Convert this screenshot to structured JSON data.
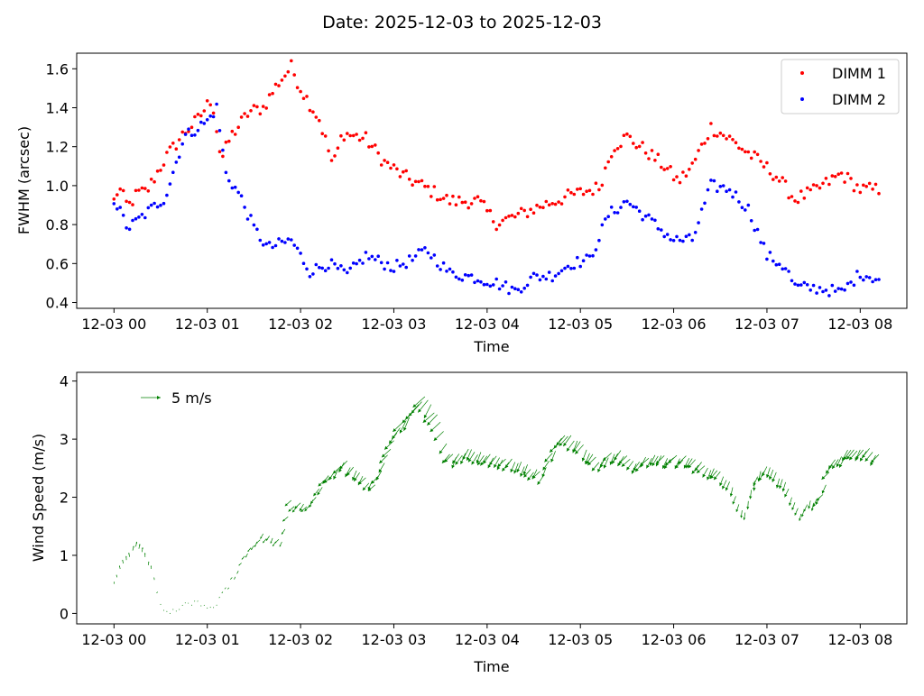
{
  "figure_title": "Date: 2025-12-03 to 2025-12-03",
  "chart_data": [
    {
      "type": "scatter",
      "xlabel": "Time",
      "ylabel": "FWHM (arcsec)",
      "x_unit": "hours after 2025-12-03 00:00",
      "xlim": [
        -0.4,
        8.5
      ],
      "ylim": [
        0.37,
        1.68
      ],
      "x_ticks": [
        0,
        1,
        2,
        3,
        4,
        5,
        6,
        7,
        8
      ],
      "x_tick_labels": [
        "12-03 00",
        "12-03 01",
        "12-03 02",
        "12-03 03",
        "12-03 04",
        "12-03 05",
        "12-03 06",
        "12-03 07",
        "12-03 08"
      ],
      "y_ticks": [
        0.4,
        0.6,
        0.8,
        1.0,
        1.2,
        1.4,
        1.6
      ],
      "y_tick_labels": [
        "0.4",
        "0.6",
        "0.8",
        "1.0",
        "1.2",
        "1.4",
        "1.6"
      ],
      "grid": false,
      "legend_position": "top-right",
      "series": [
        {
          "name": "DIMM 1",
          "color": "#ff0000",
          "anchors": [
            [
              0,
              0.92
            ],
            [
              0.05,
              0.99
            ],
            [
              0.15,
              0.89
            ],
            [
              0.25,
              0.96
            ],
            [
              0.35,
              0.97
            ],
            [
              0.55,
              1.14
            ],
            [
              0.75,
              1.27
            ],
            [
              0.9,
              1.34
            ],
            [
              1.05,
              1.45
            ],
            [
              1.15,
              1.13
            ],
            [
              1.25,
              1.25
            ],
            [
              1.45,
              1.38
            ],
            [
              1.6,
              1.4
            ],
            [
              1.75,
              1.52
            ],
            [
              1.9,
              1.61
            ],
            [
              2.0,
              1.5
            ],
            [
              2.2,
              1.34
            ],
            [
              2.35,
              1.1
            ],
            [
              2.45,
              1.27
            ],
            [
              2.7,
              1.24
            ],
            [
              2.9,
              1.12
            ],
            [
              3.1,
              1.05
            ],
            [
              3.3,
              1.0
            ],
            [
              3.6,
              0.92
            ],
            [
              3.9,
              0.92
            ],
            [
              4.1,
              0.81
            ],
            [
              4.3,
              0.84
            ],
            [
              4.6,
              0.9
            ],
            [
              4.9,
              0.95
            ],
            [
              5.2,
              0.99
            ],
            [
              5.35,
              1.2
            ],
            [
              5.5,
              1.25
            ],
            [
              5.7,
              1.18
            ],
            [
              5.9,
              1.1
            ],
            [
              6.05,
              1.02
            ],
            [
              6.2,
              1.1
            ],
            [
              6.4,
              1.3
            ],
            [
              6.6,
              1.24
            ],
            [
              6.9,
              1.13
            ],
            [
              7.1,
              1.05
            ],
            [
              7.3,
              0.93
            ],
            [
              7.5,
              0.97
            ],
            [
              7.8,
              1.06
            ],
            [
              8.0,
              0.98
            ],
            [
              8.2,
              0.98
            ]
          ],
          "noise": 0.035
        },
        {
          "name": "DIMM 2",
          "color": "#0000ff",
          "anchors": [
            [
              0,
              0.93
            ],
            [
              0.15,
              0.78
            ],
            [
              0.35,
              0.86
            ],
            [
              0.55,
              0.94
            ],
            [
              0.75,
              1.25
            ],
            [
              1.0,
              1.33
            ],
            [
              1.1,
              1.4
            ],
            [
              1.2,
              1.06
            ],
            [
              1.35,
              0.95
            ],
            [
              1.5,
              0.78
            ],
            [
              1.65,
              0.68
            ],
            [
              1.9,
              0.72
            ],
            [
              2.1,
              0.56
            ],
            [
              2.3,
              0.6
            ],
            [
              2.5,
              0.54
            ],
            [
              2.7,
              0.64
            ],
            [
              3.0,
              0.58
            ],
            [
              3.2,
              0.62
            ],
            [
              3.35,
              0.67
            ],
            [
              3.6,
              0.55
            ],
            [
              3.85,
              0.53
            ],
            [
              4.1,
              0.5
            ],
            [
              4.3,
              0.46
            ],
            [
              4.5,
              0.53
            ],
            [
              4.7,
              0.54
            ],
            [
              4.9,
              0.6
            ],
            [
              5.1,
              0.62
            ],
            [
              5.3,
              0.85
            ],
            [
              5.5,
              0.92
            ],
            [
              5.75,
              0.82
            ],
            [
              6.0,
              0.72
            ],
            [
              6.2,
              0.72
            ],
            [
              6.4,
              1.0
            ],
            [
              6.6,
              0.98
            ],
            [
              6.8,
              0.88
            ],
            [
              7.0,
              0.64
            ],
            [
              7.2,
              0.58
            ],
            [
              7.3,
              0.48
            ],
            [
              7.6,
              0.47
            ],
            [
              7.8,
              0.45
            ],
            [
              8.0,
              0.55
            ],
            [
              8.2,
              0.52
            ]
          ],
          "noise": 0.03
        }
      ]
    },
    {
      "type": "quiver",
      "xlabel": "Time",
      "ylabel": "Wind Speed (m/s)",
      "x_unit": "hours after 2025-12-03 00:00",
      "xlim": [
        -0.4,
        8.5
      ],
      "ylim": [
        -0.18,
        4.15
      ],
      "x_ticks": [
        0,
        1,
        2,
        3,
        4,
        5,
        6,
        7,
        8
      ],
      "x_tick_labels": [
        "12-03 00",
        "12-03 01",
        "12-03 02",
        "12-03 03",
        "12-03 04",
        "12-03 05",
        "12-03 06",
        "12-03 07",
        "12-03 08"
      ],
      "y_ticks": [
        0,
        1,
        2,
        3,
        4
      ],
      "y_tick_labels": [
        "0",
        "1",
        "2",
        "3",
        "4"
      ],
      "color": "#008000",
      "key_label": "5 m/s",
      "anchors": [
        [
          0,
          0.5
        ],
        [
          0.1,
          0.85
        ],
        [
          0.22,
          1.15
        ],
        [
          0.3,
          1.1
        ],
        [
          0.42,
          0.65
        ],
        [
          0.5,
          0.15
        ],
        [
          0.6,
          0.0
        ],
        [
          0.75,
          0.15
        ],
        [
          0.9,
          0.2
        ],
        [
          1.05,
          0.05
        ],
        [
          1.3,
          0.65
        ],
        [
          1.4,
          1.0
        ],
        [
          1.6,
          1.35
        ],
        [
          1.8,
          1.2
        ],
        [
          1.9,
          1.9
        ],
        [
          2.1,
          1.85
        ],
        [
          2.3,
          2.35
        ],
        [
          2.5,
          2.6
        ],
        [
          2.8,
          2.2
        ],
        [
          3.0,
          3.0
        ],
        [
          3.2,
          3.5
        ],
        [
          3.35,
          3.75
        ],
        [
          3.5,
          3.3
        ],
        [
          3.6,
          2.7
        ],
        [
          3.8,
          2.8
        ],
        [
          4.1,
          2.7
        ],
        [
          4.4,
          2.55
        ],
        [
          4.6,
          2.4
        ],
        [
          4.8,
          3.05
        ],
        [
          5.0,
          3.0
        ],
        [
          5.2,
          2.6
        ],
        [
          5.4,
          2.8
        ],
        [
          5.6,
          2.6
        ],
        [
          5.8,
          2.7
        ],
        [
          6.0,
          2.7
        ],
        [
          6.2,
          2.65
        ],
        [
          6.4,
          2.5
        ],
        [
          6.6,
          2.3
        ],
        [
          6.75,
          1.7
        ],
        [
          6.9,
          2.4
        ],
        [
          7.0,
          2.5
        ],
        [
          7.2,
          2.3
        ],
        [
          7.35,
          1.7
        ],
        [
          7.45,
          1.9
        ],
        [
          7.6,
          2.0
        ],
        [
          7.7,
          2.6
        ],
        [
          7.9,
          2.8
        ],
        [
          8.1,
          2.8
        ],
        [
          8.2,
          2.75
        ]
      ],
      "noise": 0.05
    }
  ]
}
